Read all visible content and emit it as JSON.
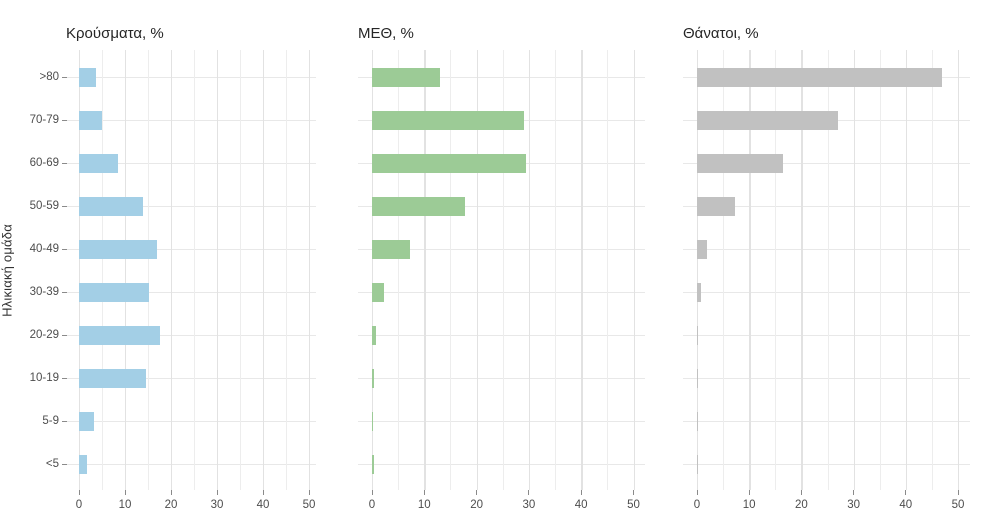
{
  "chart_data": {
    "type": "bar",
    "orientation": "horizontal",
    "ylabel": "Ηλικιακή ομάδα",
    "categories": [
      ">80",
      "70-79",
      "60-69",
      "50-59",
      "40-49",
      "30-39",
      "20-29",
      "10-19",
      "5-9",
      "<5"
    ],
    "xlim": [
      0,
      50
    ],
    "x_ticks": [
      0,
      10,
      20,
      30,
      40,
      50
    ],
    "grid": "on",
    "legend": "none",
    "panels": [
      {
        "title": "Κρούσματα, %",
        "color": "#A3CFE6",
        "values": [
          3.8,
          5.1,
          8.5,
          14.0,
          17.0,
          15.2,
          17.5,
          14.5,
          3.2,
          1.8
        ]
      },
      {
        "title": "ΜΕΘ, %",
        "color": "#9CCB96",
        "values": [
          13.0,
          29.0,
          29.5,
          17.7,
          7.2,
          2.3,
          0.7,
          0.3,
          0.15,
          0.3
        ]
      },
      {
        "title": "Θάνατοι, %",
        "color": "#C1C1C1",
        "values": [
          47.0,
          27.0,
          16.5,
          7.2,
          2.0,
          0.7,
          0.15,
          0.15,
          0.05,
          0.2
        ]
      }
    ]
  }
}
